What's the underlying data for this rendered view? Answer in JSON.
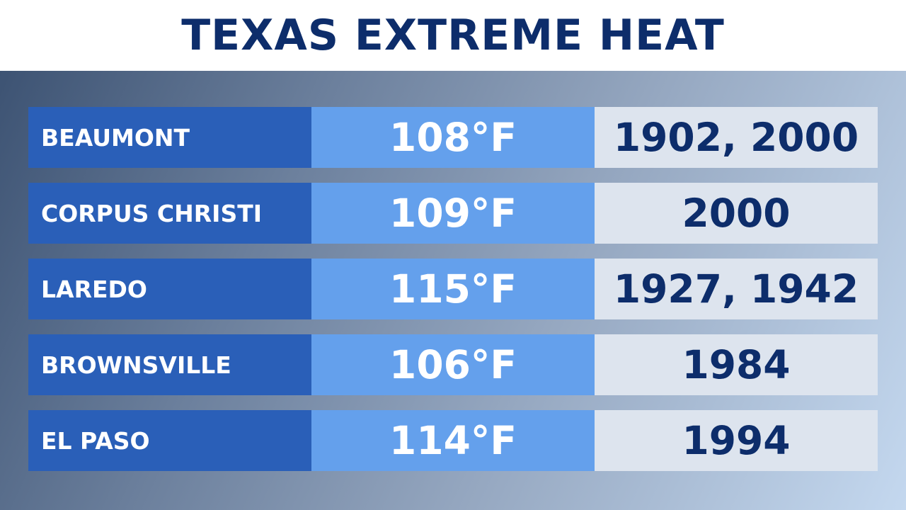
{
  "title": "TEXAS EXTREME HEAT",
  "colors": {
    "title_text": "#0d2d6b",
    "city_cell": "#2a5fb8",
    "temp_cell": "#64a0ec",
    "year_cell": "#dde4ee",
    "year_text": "#0d2d6b"
  },
  "chart_data": {
    "type": "table",
    "title": "TEXAS EXTREME HEAT",
    "columns": [],
    "rows": [
      {
        "city": "BEAUMONT",
        "temp": "108°F",
        "year": "1902, 2000"
      },
      {
        "city": "CORPUS CHRISTI",
        "temp": "109°F",
        "year": "2000"
      },
      {
        "city": "LAREDO",
        "temp": "115°F",
        "year": "1927, 1942"
      },
      {
        "city": "BROWNSVILLE",
        "temp": "106°F",
        "year": "1984"
      },
      {
        "city": "EL PASO",
        "temp": "114°F",
        "year": "1994"
      }
    ]
  }
}
